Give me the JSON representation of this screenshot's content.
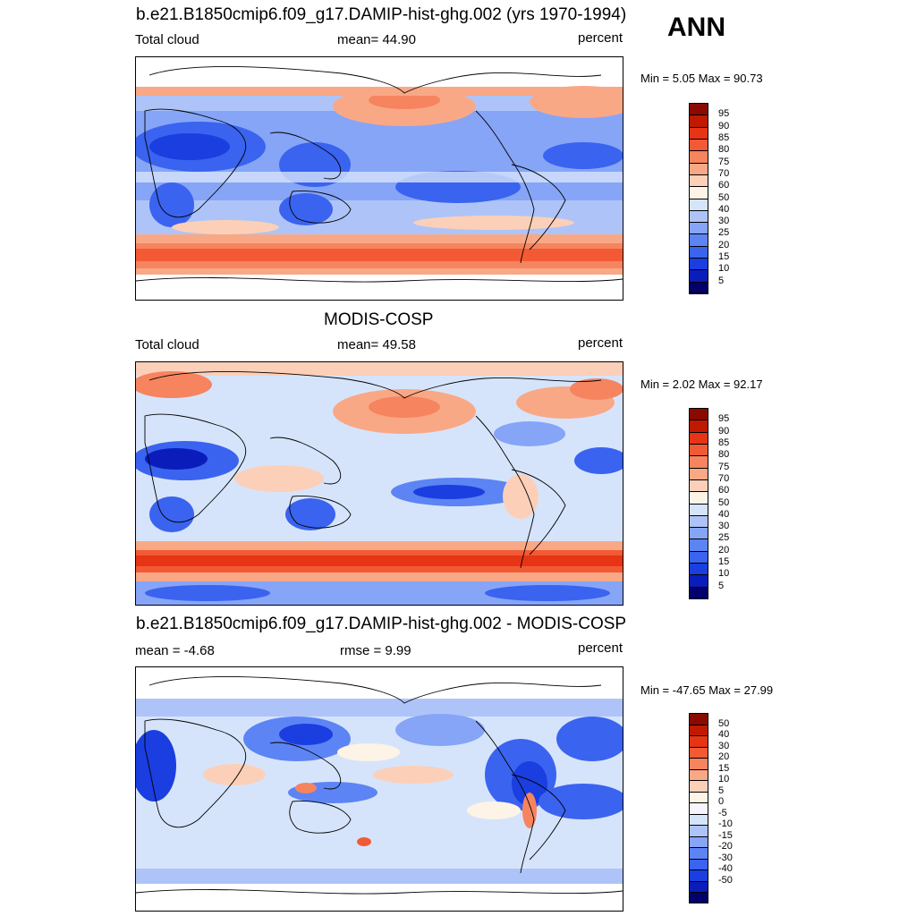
{
  "season": "ANN",
  "colors": {
    "seq": [
      "#03006b",
      "#0a1dbb",
      "#1a3ee0",
      "#3a63ef",
      "#5c84f4",
      "#86a5f7",
      "#aec4f8",
      "#d6e4fb",
      "#fdf3e6",
      "#fcd0b8",
      "#f9a886",
      "#f6845f",
      "#f25a35",
      "#e63414",
      "#c01900",
      "#8a0a00"
    ],
    "diff": [
      "#03006b",
      "#0a1dbb",
      "#1a3ee0",
      "#3a63ef",
      "#5c84f4",
      "#86a5f7",
      "#aec4f8",
      "#d6e4fb",
      "#f7f3ff",
      "#fdf3e6",
      "#fcd0b8",
      "#f9a886",
      "#f6845f",
      "#f25a35",
      "#e63414",
      "#c01900",
      "#8a0a00"
    ]
  },
  "panels": [
    {
      "title": "b.e21.B1850cmip6.f09_g17.DAMIP-hist-ghg.002 (yrs 1970-1994)",
      "left": "Total cloud",
      "center": "mean=  44.90",
      "right": "percent",
      "minmax": "Min =   5.05 Max =  90.73",
      "labels": [
        "95",
        "90",
        "85",
        "80",
        "75",
        "70",
        "60",
        "50",
        "40",
        "30",
        "25",
        "20",
        "15",
        "10",
        "5"
      ]
    },
    {
      "title": "MODIS-COSP",
      "left": "Total cloud",
      "center": "mean=  49.58",
      "right": "percent",
      "minmax": "Min =   2.02 Max =  92.17",
      "labels": [
        "95",
        "90",
        "85",
        "80",
        "75",
        "70",
        "60",
        "50",
        "40",
        "30",
        "25",
        "20",
        "15",
        "10",
        "5"
      ]
    },
    {
      "title": "b.e21.B1850cmip6.f09_g17.DAMIP-hist-ghg.002 - MODIS-COSP",
      "left": "mean =  -4.68",
      "center": "rmse =   9.99",
      "right": "percent",
      "minmax": "Min = -47.65 Max =  27.99",
      "labels": [
        "50",
        "40",
        "30",
        "20",
        "15",
        "10",
        "5",
        "0",
        "-5",
        "-10",
        "-15",
        "-20",
        "-30",
        "-40",
        "-50"
      ]
    }
  ]
}
